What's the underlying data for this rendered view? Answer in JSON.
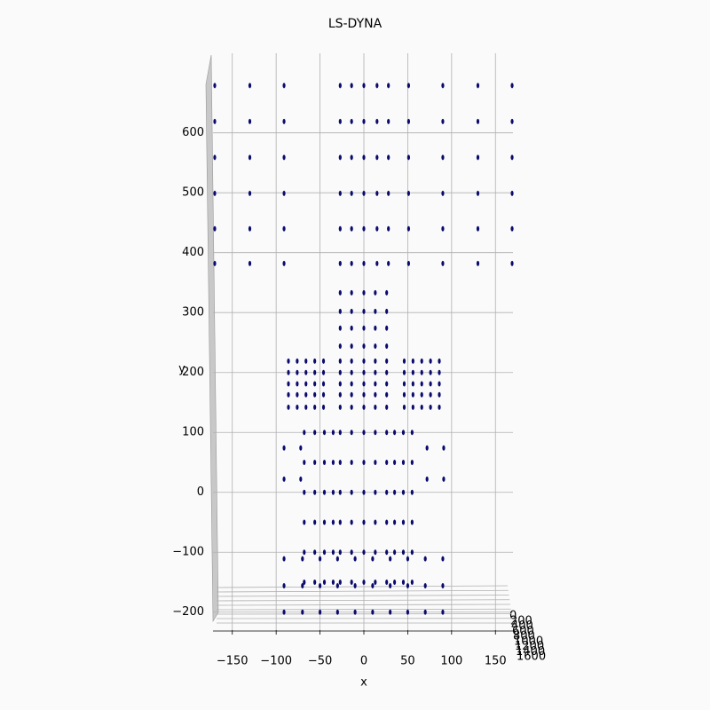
{
  "chart_data": {
    "type": "scatter",
    "title": "LS-DYNA",
    "x_label": "x",
    "y_label": "y",
    "color": "#0b0b6e",
    "grid": true,
    "xlim": [
      -172,
      172
    ],
    "ylim": [
      -230,
      681
    ],
    "zlim": [
      0,
      1600
    ],
    "xticks": [
      {
        "value": -150,
        "label": "−150"
      },
      {
        "value": -100,
        "label": "−100"
      },
      {
        "value": -50,
        "label": "−50"
      },
      0,
      50,
      100,
      150
    ],
    "yticks": [
      {
        "value": -200,
        "label": "−200"
      },
      {
        "value": -100,
        "label": "−100"
      },
      0,
      100,
      200,
      300,
      400,
      500,
      600
    ],
    "zticks": [
      0,
      200,
      400,
      600,
      800,
      1000,
      1200,
      1400,
      1600
    ],
    "x": [
      -170,
      -130,
      -91,
      -27,
      -14,
      0,
      15,
      28,
      51,
      90,
      130,
      169,
      -170,
      -130,
      -91,
      -27,
      -14,
      0,
      15,
      28,
      51,
      90,
      130,
      169,
      -170,
      -130,
      -91,
      -27,
      -14,
      0,
      15,
      28,
      51,
      90,
      130,
      169,
      -170,
      -130,
      -91,
      -27,
      -14,
      0,
      15,
      28,
      51,
      90,
      130,
      169,
      -170,
      -130,
      -91,
      -27,
      -14,
      0,
      15,
      28,
      51,
      90,
      130,
      169,
      -170,
      -130,
      -91,
      -27,
      -14,
      0,
      15,
      28,
      51,
      90,
      130,
      169,
      -27,
      -14,
      0,
      13,
      26,
      -27,
      -14,
      0,
      13,
      26,
      -27,
      -14,
      0,
      13,
      26,
      -27,
      -14,
      0,
      13,
      26,
      -86,
      -76,
      -66,
      -56,
      -46,
      -27,
      -14,
      0,
      13,
      26,
      46,
      56,
      66,
      76,
      86,
      -86,
      -76,
      -66,
      -56,
      -46,
      -27,
      -14,
      0,
      13,
      26,
      46,
      56,
      66,
      76,
      86,
      -86,
      -76,
      -66,
      -56,
      -46,
      -27,
      -14,
      0,
      13,
      26,
      46,
      56,
      66,
      76,
      86,
      -86,
      -76,
      -66,
      -56,
      -46,
      -27,
      -14,
      0,
      13,
      26,
      46,
      56,
      66,
      76,
      86,
      -86,
      -76,
      -66,
      -56,
      -46,
      -27,
      -14,
      0,
      13,
      26,
      46,
      56,
      66,
      76,
      86,
      -68,
      -56,
      -45,
      -35,
      -27,
      -14,
      0,
      13,
      26,
      35,
      45,
      55,
      -68,
      -56,
      -45,
      -35,
      -27,
      -14,
      0,
      13,
      26,
      35,
      45,
      55,
      -68,
      -56,
      -45,
      -35,
      -27,
      -14,
      0,
      13,
      26,
      35,
      45,
      55,
      -68,
      -56,
      -45,
      -35,
      -27,
      -14,
      0,
      13,
      26,
      35,
      45,
      55,
      -68,
      -56,
      -45,
      -35,
      -27,
      -14,
      0,
      13,
      26,
      35,
      45,
      55,
      -68,
      -56,
      -45,
      -35,
      -27,
      -14,
      0,
      13,
      26,
      35,
      45,
      55,
      -91,
      -72,
      72,
      91,
      -91,
      -72,
      72,
      91,
      -91,
      -70,
      -50,
      -30,
      -10,
      10,
      30,
      50,
      70,
      90,
      -91,
      -70,
      -50,
      -30,
      -10,
      10,
      30,
      50,
      70,
      90,
      -91,
      -70,
      -50,
      -30,
      -10,
      10,
      30,
      50,
      70,
      90
    ],
    "values": [
      679,
      679,
      679,
      679,
      679,
      679,
      679,
      679,
      679,
      679,
      679,
      679,
      619,
      619,
      619,
      619,
      619,
      619,
      619,
      619,
      619,
      619,
      619,
      619,
      559,
      559,
      559,
      559,
      559,
      559,
      559,
      559,
      559,
      559,
      559,
      559,
      499,
      499,
      499,
      499,
      499,
      499,
      499,
      499,
      499,
      499,
      499,
      499,
      440,
      440,
      440,
      440,
      440,
      440,
      440,
      440,
      440,
      440,
      440,
      440,
      382,
      382,
      382,
      382,
      382,
      382,
      382,
      382,
      382,
      382,
      382,
      382,
      333,
      333,
      333,
      333,
      333,
      302,
      302,
      302,
      302,
      302,
      274,
      274,
      274,
      274,
      274,
      244,
      244,
      244,
      244,
      244,
      219,
      219,
      219,
      219,
      219,
      219,
      219,
      219,
      219,
      219,
      219,
      219,
      219,
      219,
      219,
      200,
      200,
      200,
      200,
      200,
      200,
      200,
      200,
      200,
      200,
      200,
      200,
      200,
      200,
      200,
      181,
      181,
      181,
      181,
      181,
      181,
      181,
      181,
      181,
      181,
      181,
      181,
      181,
      181,
      181,
      163,
      163,
      163,
      163,
      163,
      163,
      163,
      163,
      163,
      163,
      163,
      163,
      163,
      163,
      163,
      142,
      142,
      142,
      142,
      142,
      142,
      142,
      142,
      142,
      142,
      142,
      142,
      142,
      142,
      142,
      100,
      100,
      100,
      100,
      100,
      100,
      100,
      100,
      100,
      100,
      100,
      100,
      50,
      50,
      50,
      50,
      50,
      50,
      50,
      50,
      50,
      50,
      50,
      50,
      0,
      0,
      0,
      0,
      0,
      0,
      0,
      0,
      0,
      0,
      0,
      0,
      -50,
      -50,
      -50,
      -50,
      -50,
      -50,
      -50,
      -50,
      -50,
      -50,
      -50,
      -50,
      -100,
      -100,
      -100,
      -100,
      -100,
      -100,
      -100,
      -100,
      -100,
      -100,
      -100,
      -100,
      -150,
      -150,
      -150,
      -150,
      -150,
      -150,
      -150,
      -150,
      -150,
      -150,
      -150,
      -150,
      74,
      74,
      74,
      74,
      22,
      22,
      22,
      22,
      -111,
      -111,
      -111,
      -111,
      -111,
      -111,
      -111,
      -111,
      -111,
      -111,
      -156,
      -156,
      -156,
      -156,
      -156,
      -156,
      -156,
      -156,
      -156,
      -156,
      -200,
      -200,
      -200,
      -200,
      -200,
      -200,
      -200,
      -200,
      -200,
      -200
    ]
  }
}
